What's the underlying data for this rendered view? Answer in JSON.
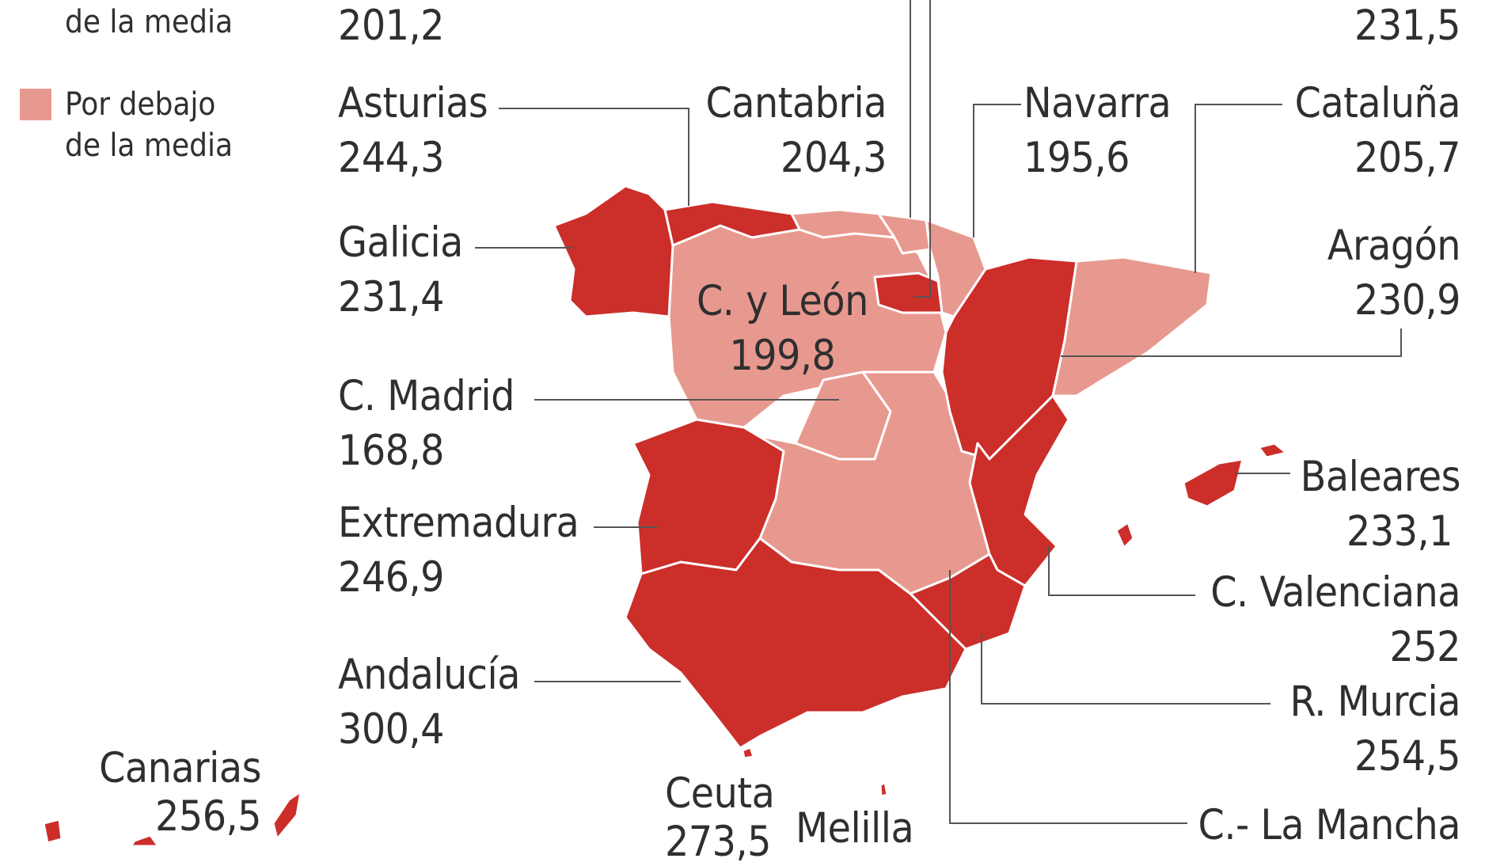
{
  "legend": {
    "above_tail": "de la media",
    "below_label_1": "Por debajo",
    "below_label_2": "de la media",
    "colors": {
      "above": "#cc2e2a",
      "below": "#e8998f"
    }
  },
  "regions": {
    "top_left_value": "201,2",
    "top_right_value": "231,5",
    "asturias": {
      "name": "Asturias",
      "value": "244,3"
    },
    "cantabria": {
      "name": "Cantabria",
      "value": "204,3"
    },
    "navarra": {
      "name": "Navarra",
      "value": "195,6"
    },
    "cataluna": {
      "name": "Cataluña",
      "value": "205,7"
    },
    "galicia": {
      "name": "Galicia",
      "value": "231,4"
    },
    "aragon": {
      "name": "Aragón",
      "value": "230,9"
    },
    "cyleon": {
      "name": "C. y León",
      "value": "199,8"
    },
    "madrid": {
      "name": "C. Madrid",
      "value": "168,8"
    },
    "baleares": {
      "name": "Baleares",
      "value": "233,1"
    },
    "extremadura": {
      "name": "Extremadura",
      "value": "246,9"
    },
    "valenciana": {
      "name": "C. Valenciana",
      "value": "252"
    },
    "andalucia": {
      "name": "Andalucía",
      "value": "300,4"
    },
    "murcia": {
      "name": "R. Murcia",
      "value": "254,5"
    },
    "canarias": {
      "name": "Canarias",
      "value": "256,5"
    },
    "ceuta": {
      "name": "Ceuta",
      "value": "273,5"
    },
    "melilla": {
      "name": "Melilla"
    },
    "clamancha": {
      "name": "C.- La Mancha"
    }
  }
}
